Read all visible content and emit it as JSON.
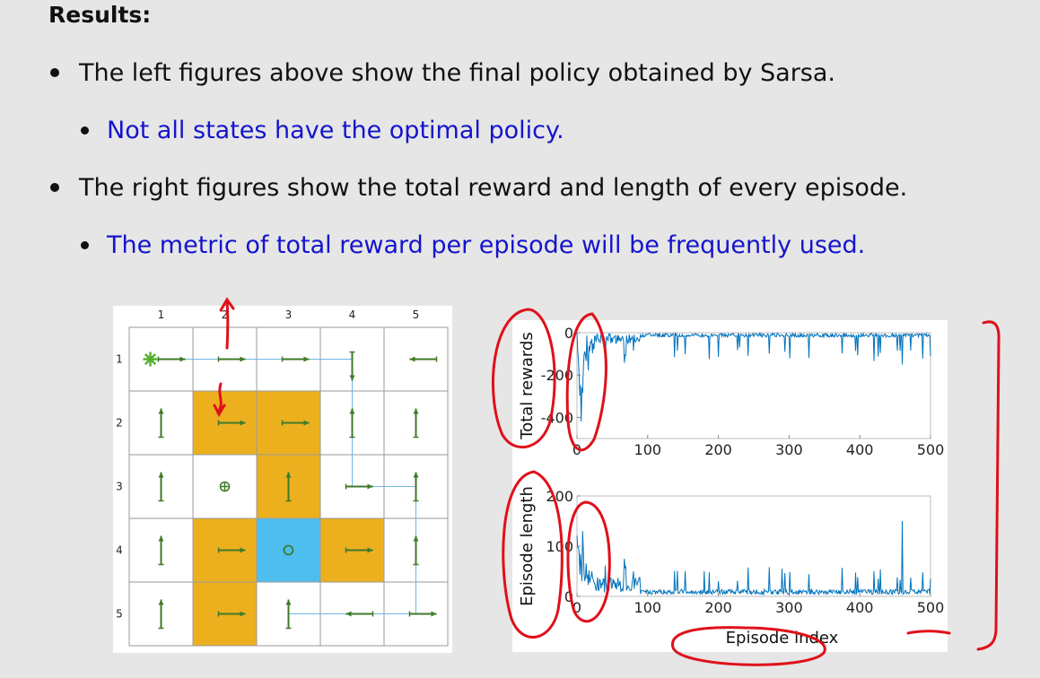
{
  "heading": "Results:",
  "bullets": [
    {
      "text": "The left figures above show the final policy obtained by Sarsa.",
      "level": 1
    },
    {
      "text": "Not all states have the optimal policy.",
      "level": 2,
      "color": "#1414cc"
    },
    {
      "text": "The right figures show the total reward and length of every episode.",
      "level": 1
    },
    {
      "text": "The metric of total reward per episode will be frequently used.",
      "level": 2,
      "color": "#1414cc"
    }
  ],
  "grid": {
    "col_labels": [
      "1",
      "2",
      "3",
      "4",
      "5"
    ],
    "row_labels": [
      "1",
      "2",
      "3",
      "4",
      "5"
    ],
    "forbidden_color": "#ecb01f",
    "target_color": "#4dbeee",
    "arrow_color": "#3f7a2a",
    "cells": [
      [
        "star",
        "right",
        "right",
        "down",
        "left"
      ],
      [
        "up-down",
        "right",
        "right",
        "up-down",
        "up-down"
      ],
      [
        "up-down",
        "circle-plus",
        "up-down",
        "right",
        "up-down"
      ],
      [
        "up-down",
        "right",
        "circle",
        "right",
        "up-down"
      ],
      [
        "up-down",
        "right",
        "up-down",
        "left",
        "right"
      ]
    ],
    "forbidden": [
      [
        2,
        2
      ],
      [
        2,
        3
      ],
      [
        3,
        3
      ],
      [
        4,
        2
      ],
      [
        4,
        4
      ],
      [
        5,
        2
      ]
    ],
    "target": [
      4,
      3
    ]
  },
  "chart_data": [
    {
      "type": "line",
      "ylabel": "Total rewards",
      "xlabel": "",
      "xlim": [
        0,
        500
      ],
      "ylim": [
        -500,
        0
      ],
      "x_ticks": [
        "0",
        "100",
        "200",
        "300",
        "400",
        "500"
      ],
      "y_ticks": [
        "0",
        "-200",
        "-400"
      ],
      "y_tick_values": [
        0,
        -200,
        -400
      ],
      "color": "#0072bd",
      "series": [
        {
          "name": "",
          "values": []
        }
      ]
    },
    {
      "type": "line",
      "ylabel": "Episode length",
      "xlabel": "Episode index",
      "xlim": [
        0,
        500
      ],
      "ylim": [
        0,
        200
      ],
      "x_ticks": [
        "0",
        "100",
        "200",
        "300",
        "400",
        "500"
      ],
      "y_ticks": [
        "200",
        "100",
        "0"
      ],
      "y_tick_values": [
        200,
        100,
        0
      ],
      "color": "#0072bd",
      "series": [
        {
          "name": "",
          "values": []
        }
      ]
    }
  ]
}
